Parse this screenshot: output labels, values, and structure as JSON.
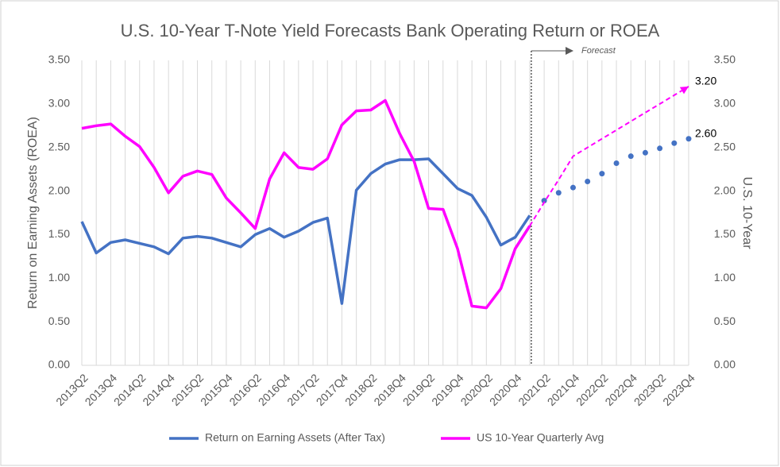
{
  "chart_data": {
    "type": "line",
    "title": "U.S. 10-Year T-Note Yield Forecasts Bank Operating Return or ROEA",
    "y_label": "Return on Earning Assets (ROEA)",
    "y2_label": "U.S. 10-Year",
    "annotation": "Forecast",
    "categories": [
      "2013Q2",
      null,
      "2013Q4",
      null,
      "2014Q2",
      null,
      "2014Q4",
      null,
      "2015Q2",
      null,
      "2015Q4",
      null,
      "2016Q2",
      null,
      "2016Q4",
      null,
      "2017Q2",
      null,
      "2017Q4",
      null,
      "2018Q2",
      null,
      "2018Q4",
      null,
      "2019Q2",
      null,
      "2019Q4",
      null,
      "2020Q2",
      null,
      "2020Q4",
      null,
      "2021Q2",
      null,
      "2021Q4",
      null,
      "2022Q2",
      null,
      "2022Q4",
      null,
      "2023Q2",
      null,
      "2023Q4"
    ],
    "series": [
      {
        "name": "Return on Earning Assets (After Tax)",
        "color": "#4472c4",
        "axis": "y",
        "forecast_style": "dots",
        "values": [
          1.65,
          1.29,
          1.41,
          1.44,
          1.4,
          1.36,
          1.28,
          1.46,
          1.48,
          1.46,
          1.41,
          1.36,
          1.5,
          1.57,
          1.47,
          1.54,
          1.64,
          1.69,
          0.71,
          2.01,
          2.2,
          2.31,
          2.36,
          2.36,
          2.37,
          2.2,
          2.03,
          1.95,
          1.7,
          1.38,
          1.47,
          1.72,
          null,
          null,
          null,
          null,
          null,
          null,
          null,
          null,
          null,
          null,
          null
        ],
        "forecast_values": [
          null,
          null,
          null,
          null,
          null,
          null,
          null,
          null,
          null,
          null,
          null,
          null,
          null,
          null,
          null,
          null,
          null,
          null,
          null,
          null,
          null,
          null,
          null,
          null,
          null,
          null,
          null,
          null,
          null,
          null,
          null,
          null,
          1.89,
          1.98,
          2.04,
          2.11,
          2.2,
          2.32,
          2.4,
          2.44,
          2.49,
          2.55,
          2.6
        ],
        "forecast_value_labels": [
          null,
          null,
          null,
          null,
          null,
          null,
          null,
          null,
          null,
          null,
          null,
          null,
          null,
          null,
          null,
          null,
          null,
          null,
          null,
          null,
          null,
          null,
          null,
          null,
          null,
          null,
          null,
          null,
          null,
          null,
          null,
          null,
          null,
          null,
          null,
          null,
          null,
          null,
          null,
          null,
          null,
          null,
          "2.60"
        ]
      },
      {
        "name": "US 10-Year Quarterly Avg",
        "color": "#ff00ff",
        "axis": "y2",
        "forecast_style": "dashed",
        "values": [
          2.72,
          2.75,
          2.77,
          2.63,
          2.51,
          2.27,
          1.98,
          2.17,
          2.23,
          2.19,
          1.92,
          1.75,
          1.57,
          2.14,
          2.44,
          2.27,
          2.25,
          2.37,
          2.76,
          2.92,
          2.93,
          3.04,
          2.66,
          2.34,
          1.8,
          1.79,
          1.34,
          0.68,
          0.66,
          0.88,
          1.34,
          1.6,
          null,
          null,
          null,
          null,
          null,
          null,
          null,
          null,
          null,
          null,
          null
        ],
        "forecast_values": [
          null,
          null,
          null,
          null,
          null,
          null,
          null,
          null,
          null,
          null,
          null,
          null,
          null,
          null,
          null,
          null,
          null,
          null,
          null,
          null,
          null,
          null,
          null,
          null,
          null,
          null,
          null,
          null,
          null,
          null,
          null,
          1.6,
          1.87,
          2.13,
          2.4,
          2.5,
          2.6,
          2.7,
          2.8,
          2.9,
          3.0,
          3.1,
          3.2
        ],
        "forecast_value_labels": [
          null,
          null,
          null,
          null,
          null,
          null,
          null,
          null,
          null,
          null,
          null,
          null,
          null,
          null,
          null,
          null,
          null,
          null,
          null,
          null,
          null,
          null,
          null,
          null,
          null,
          null,
          null,
          null,
          null,
          null,
          null,
          null,
          null,
          null,
          null,
          null,
          null,
          null,
          null,
          null,
          null,
          null,
          "3.20"
        ]
      }
    ],
    "ylim": [
      0,
      3.5
    ],
    "yticks": [
      {
        "value": 0,
        "label": "0.00"
      },
      {
        "value": 0.5,
        "label": "0.50"
      },
      {
        "value": 1,
        "label": "1.00"
      },
      {
        "value": 1.5,
        "label": "1.50"
      },
      {
        "value": 2,
        "label": "2.00"
      },
      {
        "value": 2.5,
        "label": "2.50"
      },
      {
        "value": 3,
        "label": "3.00"
      },
      {
        "value": 3.5,
        "label": "3.50"
      }
    ],
    "y2lim": [
      0,
      3.5
    ],
    "y2ticks": [
      {
        "value": 0,
        "label": "0.00"
      },
      {
        "value": 0.5,
        "label": "0.50"
      },
      {
        "value": 1,
        "label": "1.00"
      },
      {
        "value": 1.5,
        "label": "1.50"
      },
      {
        "value": 2,
        "label": "2.00"
      },
      {
        "value": 2.5,
        "label": "2.50"
      },
      {
        "value": 3,
        "label": "3.00"
      },
      {
        "value": 3.5,
        "label": "3.50"
      }
    ],
    "grid": "x",
    "legend": "bottom"
  }
}
